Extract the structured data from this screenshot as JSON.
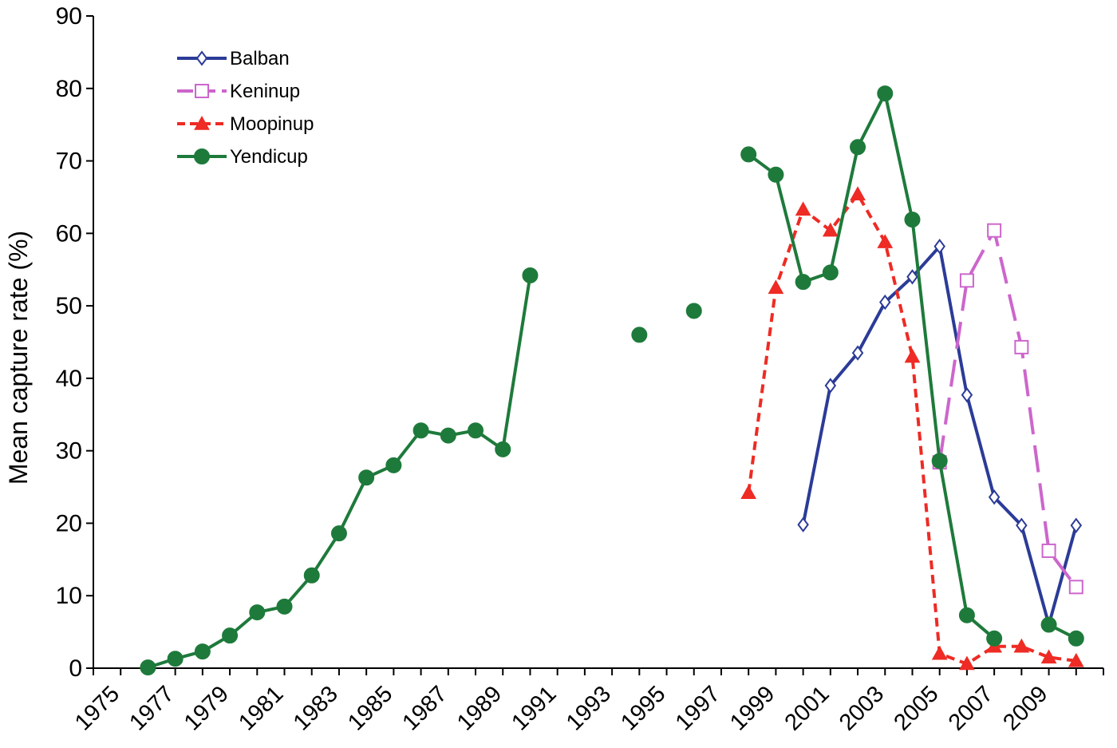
{
  "chart_data": {
    "type": "line",
    "title": "",
    "xlabel": "",
    "ylabel": "Mean capture rate (%)",
    "xlim": [
      1974,
      2011
    ],
    "ylim": [
      0,
      90
    ],
    "yticks": [
      0,
      10,
      20,
      30,
      40,
      50,
      60,
      70,
      80,
      90
    ],
    "xticks": [
      1975,
      1977,
      1979,
      1981,
      1983,
      1985,
      1987,
      1989,
      1991,
      1993,
      1995,
      1997,
      1999,
      2001,
      2003,
      2005,
      2007,
      2009
    ],
    "grid": false,
    "legend_position": "top-left",
    "series": [
      {
        "name": "Balban",
        "color": "#2b3b97",
        "marker": "diamond-open",
        "dash": "solid",
        "points": [
          [
            2000,
            19.8
          ],
          [
            2001,
            39.0
          ],
          [
            2002,
            43.5
          ],
          [
            2003,
            50.5
          ],
          [
            2004,
            54.0
          ],
          [
            2005,
            58.2
          ],
          [
            2006,
            37.7
          ],
          [
            2007,
            23.6
          ],
          [
            2008,
            19.7
          ],
          [
            2009,
            6.0
          ],
          [
            2010,
            19.7
          ]
        ]
      },
      {
        "name": "Keninup",
        "color": "#cc66cc",
        "marker": "square-open",
        "dash": "long",
        "points": [
          [
            2005,
            28.4
          ],
          [
            2006,
            53.5
          ],
          [
            2007,
            60.4
          ],
          [
            2008,
            44.3
          ],
          [
            2009,
            16.2
          ],
          [
            2010,
            11.2
          ]
        ]
      },
      {
        "name": "Moopinup",
        "color": "#ee2b24",
        "marker": "triangle",
        "dash": "short",
        "points": [
          [
            1998,
            24.2
          ],
          [
            1999,
            52.5
          ],
          [
            2000,
            63.3
          ],
          [
            2001,
            60.4
          ],
          [
            2002,
            65.4
          ],
          [
            2003,
            58.8
          ],
          [
            2004,
            43.0
          ],
          [
            2005,
            2.0
          ],
          [
            2006,
            0.6
          ],
          [
            2007,
            3.0
          ],
          [
            2008,
            3.0
          ],
          [
            2009,
            1.5
          ],
          [
            2010,
            1.0
          ]
        ]
      },
      {
        "name": "Yendicup",
        "color": "#1e7a3b",
        "marker": "circle",
        "dash": "solid",
        "points": [
          [
            1976,
            0.1
          ],
          [
            1977,
            1.3
          ],
          [
            1978,
            2.3
          ],
          [
            1979,
            4.5
          ],
          [
            1980,
            7.7
          ],
          [
            1981,
            8.5
          ],
          [
            1982,
            12.8
          ],
          [
            1983,
            18.6
          ],
          [
            1984,
            26.3
          ],
          [
            1985,
            28.0
          ],
          [
            1986,
            32.8
          ],
          [
            1987,
            32.1
          ],
          [
            1988,
            32.8
          ],
          [
            1989,
            30.2
          ],
          [
            1990,
            54.2
          ],
          null,
          [
            1994,
            46.0
          ],
          null,
          [
            1996,
            49.3
          ],
          null,
          [
            1998,
            70.9
          ],
          [
            1999,
            68.1
          ],
          [
            2000,
            53.3
          ],
          [
            2001,
            54.6
          ],
          [
            2002,
            71.9
          ],
          [
            2003,
            79.3
          ],
          [
            2004,
            61.9
          ],
          [
            2005,
            28.6
          ],
          [
            2006,
            7.3
          ],
          [
            2007,
            4.1
          ],
          null,
          [
            2009,
            6.0
          ],
          [
            2010,
            4.1
          ]
        ]
      }
    ]
  }
}
